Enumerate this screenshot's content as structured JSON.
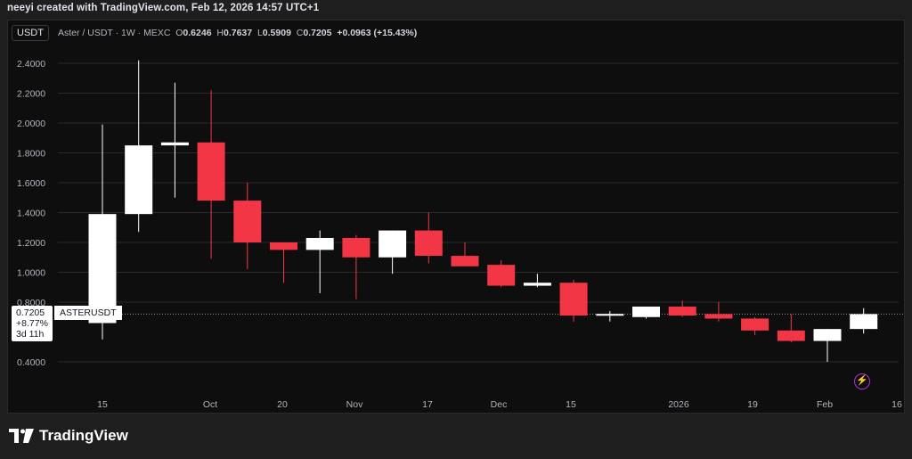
{
  "caption": "neeyi created with TradingView.com, Feb 12, 2026 14:57 UTC+1",
  "quote_unit": "USDT",
  "legend": {
    "symbol": "Aster / USDT · 1W · MEXC",
    "o_label": "O",
    "o": "0.6246",
    "h_label": "H",
    "h": "0.7637",
    "l_label": "L",
    "l": "0.5909",
    "c_label": "C",
    "c": "0.7205",
    "change": "+0.0963 (+15.43%)"
  },
  "price_tag": {
    "price": "0.7205",
    "symbol": "ASTERUSDT",
    "pct": "+8.77%",
    "countdown": "3d 11h"
  },
  "brand": "TradingView",
  "colors": {
    "up": "#ffffff",
    "down": "#f23645",
    "background": "#0e0e0e",
    "grid": "#2a2a2a"
  },
  "chart_data": {
    "type": "candlestick",
    "ylim": [
      0.2,
      2.45
    ],
    "y_ticks": [
      "2.4000",
      "2.2000",
      "2.0000",
      "1.8000",
      "1.6000",
      "1.4000",
      "1.2000",
      "1.0000",
      "0.8000",
      "0.4000"
    ],
    "x_ticks": [
      "15",
      "Oct",
      "20",
      "Nov",
      "17",
      "Dec",
      "15",
      "2026",
      "19",
      "Feb",
      "16"
    ],
    "last_price": 0.7205,
    "candles": [
      {
        "o": 0.66,
        "h": 1.99,
        "l": 0.55,
        "c": 1.39
      },
      {
        "o": 1.39,
        "h": 2.42,
        "l": 1.27,
        "c": 1.85
      },
      {
        "o": 1.85,
        "h": 2.27,
        "l": 1.5,
        "c": 1.87
      },
      {
        "o": 1.87,
        "h": 2.22,
        "l": 1.09,
        "c": 1.48
      },
      {
        "o": 1.48,
        "h": 1.6,
        "l": 1.02,
        "c": 1.2
      },
      {
        "o": 1.2,
        "h": 1.2,
        "l": 0.93,
        "c": 1.15
      },
      {
        "o": 1.15,
        "h": 1.28,
        "l": 0.86,
        "c": 1.23
      },
      {
        "o": 1.23,
        "h": 1.25,
        "l": 0.82,
        "c": 1.1
      },
      {
        "o": 1.1,
        "h": 1.28,
        "l": 0.99,
        "c": 1.28
      },
      {
        "o": 1.28,
        "h": 1.4,
        "l": 1.06,
        "c": 1.11
      },
      {
        "o": 1.11,
        "h": 1.2,
        "l": 1.04,
        "c": 1.04
      },
      {
        "o": 1.05,
        "h": 1.08,
        "l": 0.9,
        "c": 0.91
      },
      {
        "o": 0.91,
        "h": 0.99,
        "l": 0.9,
        "c": 0.93
      },
      {
        "o": 0.93,
        "h": 0.95,
        "l": 0.67,
        "c": 0.71
      },
      {
        "o": 0.71,
        "h": 0.74,
        "l": 0.67,
        "c": 0.72
      },
      {
        "o": 0.7,
        "h": 0.77,
        "l": 0.69,
        "c": 0.77
      },
      {
        "o": 0.77,
        "h": 0.81,
        "l": 0.7,
        "c": 0.71
      },
      {
        "o": 0.72,
        "h": 0.8,
        "l": 0.67,
        "c": 0.69
      },
      {
        "o": 0.69,
        "h": 0.7,
        "l": 0.58,
        "c": 0.61
      },
      {
        "o": 0.61,
        "h": 0.72,
        "l": 0.53,
        "c": 0.54
      },
      {
        "o": 0.54,
        "h": 0.62,
        "l": 0.4,
        "c": 0.62
      },
      {
        "o": 0.62,
        "h": 0.76,
        "l": 0.59,
        "c": 0.72
      }
    ]
  }
}
